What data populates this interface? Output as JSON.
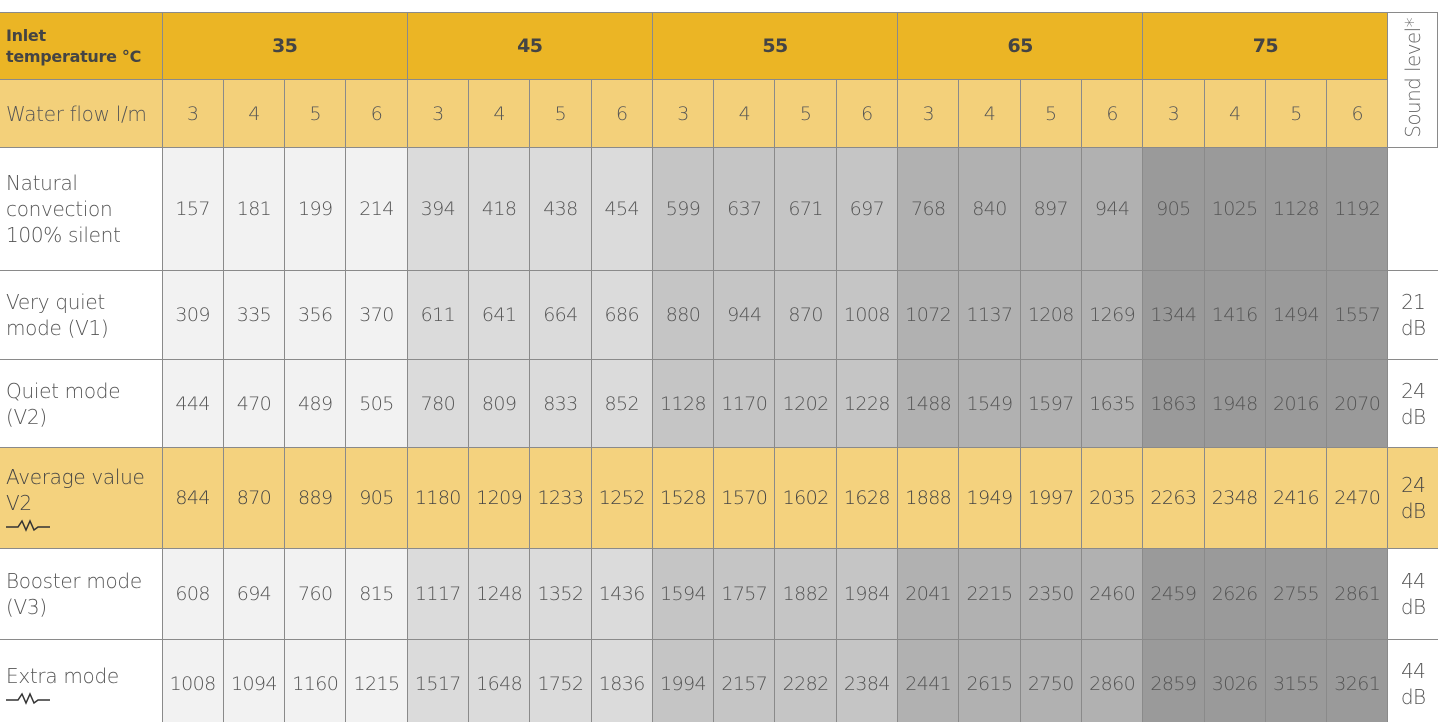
{
  "header": {
    "inlet_label": "Inlet temperature °C",
    "temperatures": [
      35,
      45,
      55,
      65,
      75
    ],
    "sound_label": "Sound level*",
    "flow_label": "Water flow l/m",
    "flows": [
      3,
      4,
      5,
      6,
      3,
      4,
      5,
      6,
      3,
      4,
      5,
      6,
      3,
      4,
      5,
      6,
      3,
      4,
      5,
      6
    ]
  },
  "rows": [
    {
      "label": "Natural convection 100% silent",
      "values": [
        157,
        181,
        199,
        214,
        394,
        418,
        438,
        454,
        599,
        637,
        671,
        697,
        768,
        840,
        897,
        944,
        905,
        1025,
        1128,
        1192
      ]
    },
    {
      "label": "Very quiet mode (V1)",
      "values": [
        309,
        335,
        356,
        370,
        611,
        641,
        664,
        686,
        880,
        944,
        870,
        1008,
        1072,
        1137,
        1208,
        1269,
        1344,
        1416,
        1494,
        1557
      ],
      "sound": "21 dB"
    },
    {
      "label": "Quiet mode (V2)",
      "values": [
        444,
        470,
        489,
        505,
        780,
        809,
        833,
        852,
        1128,
        1170,
        1202,
        1228,
        1488,
        1549,
        1597,
        1635,
        1863,
        1948,
        2016,
        2070
      ],
      "sound": "24 dB"
    },
    {
      "label": "Average value V2",
      "values": [
        844,
        870,
        889,
        905,
        1180,
        1209,
        1233,
        1252,
        1528,
        1570,
        1602,
        1628,
        1888,
        1949,
        1997,
        2035,
        2263,
        2348,
        2416,
        2470
      ],
      "sound": "24 dB"
    },
    {
      "label": "Booster mode (V3)",
      "values": [
        608,
        694,
        760,
        815,
        1117,
        1248,
        1352,
        1436,
        1594,
        1757,
        1882,
        1984,
        2041,
        2215,
        2350,
        2460,
        2459,
        2626,
        2755,
        2861
      ],
      "sound": "44 dB"
    },
    {
      "label": "Extra mode",
      "values": [
        1008,
        1094,
        1160,
        1215,
        1517,
        1648,
        1752,
        1836,
        1994,
        2157,
        2282,
        2384,
        2441,
        2615,
        2750,
        2860,
        2859,
        3026,
        3155,
        3261
      ],
      "sound": "44 dB"
    }
  ]
}
